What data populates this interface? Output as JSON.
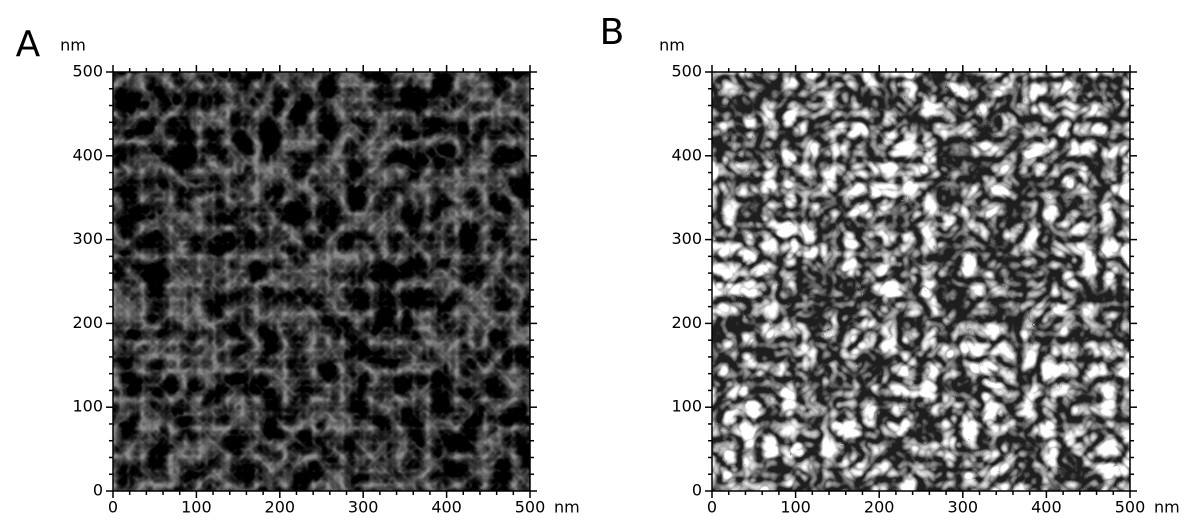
{
  "chart_data": [
    {
      "type": "image",
      "title": "A",
      "xlabel": "nm",
      "ylabel": "nm",
      "xlim": [
        0,
        500
      ],
      "ylim": [
        0,
        500
      ],
      "xticks": [
        0,
        100,
        200,
        300,
        400,
        500
      ],
      "yticks": [
        0,
        100,
        200,
        300,
        400,
        500
      ]
    },
    {
      "type": "image",
      "title": "B",
      "xlabel": "nm",
      "ylabel": "nm",
      "xlim": [
        0,
        500
      ],
      "ylim": [
        0,
        500
      ],
      "xticks": [
        0,
        100,
        200,
        300,
        400,
        500
      ],
      "yticks": [
        0,
        100,
        200,
        300,
        400,
        500
      ]
    }
  ]
}
